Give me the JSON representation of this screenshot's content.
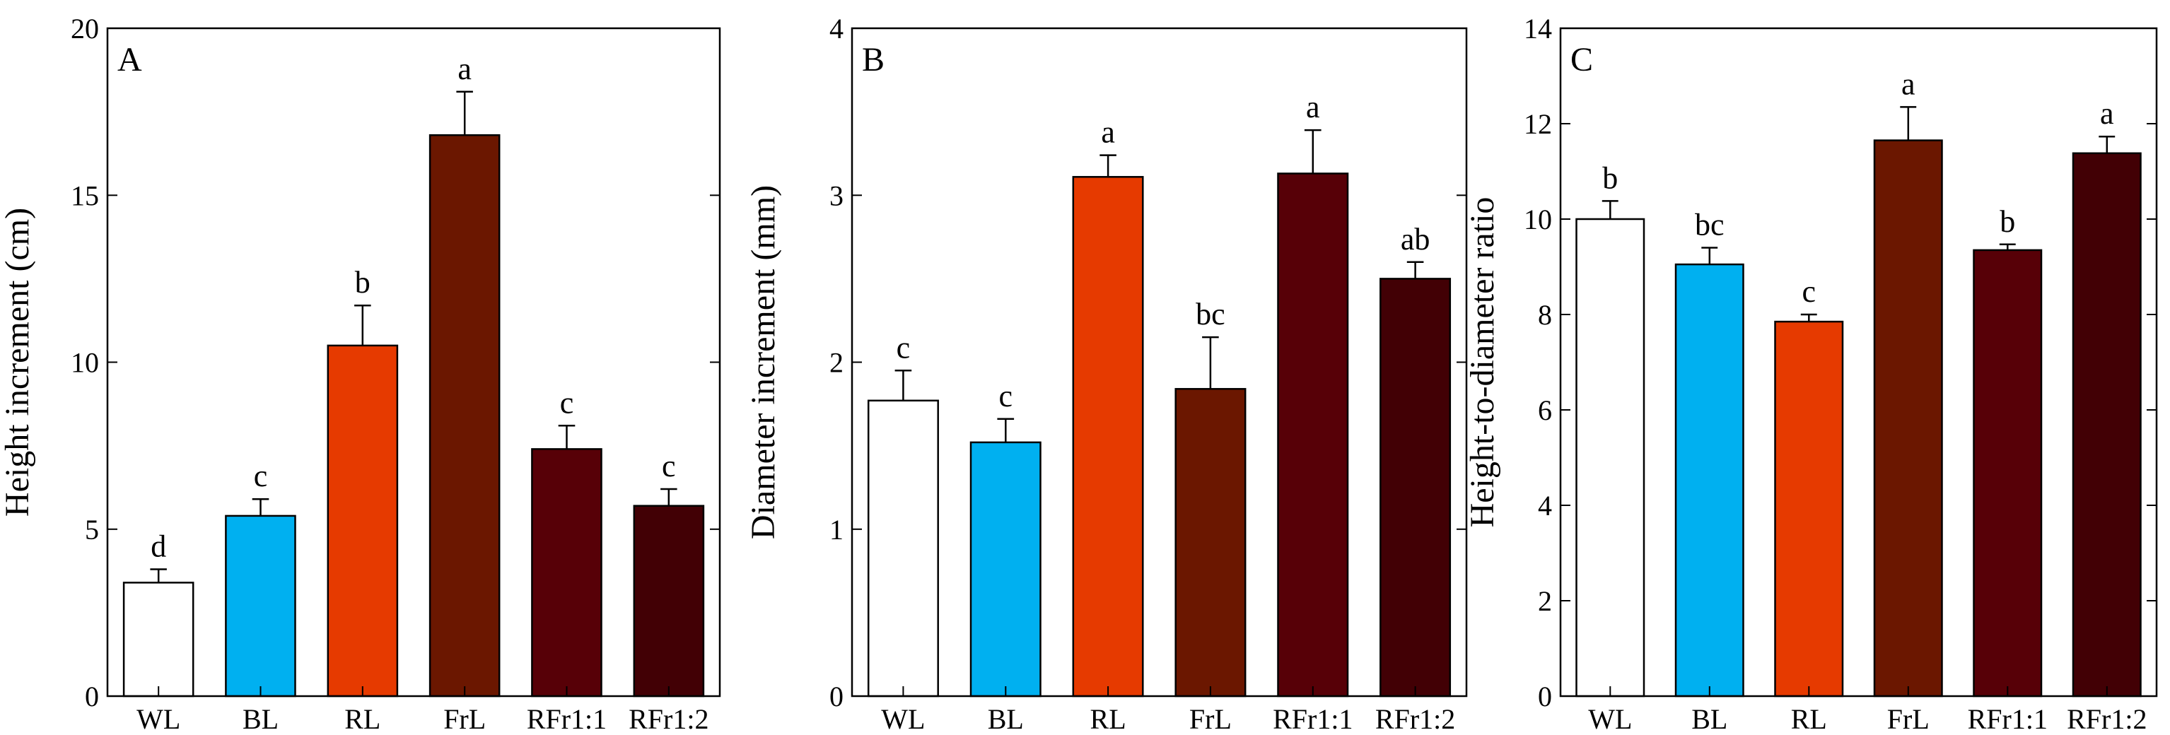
{
  "chart_data": [
    {
      "type": "bar",
      "panel": "A",
      "categories": [
        "WL",
        "BL",
        "RL",
        "FrL",
        "RFr1:1",
        "RFr1:2"
      ],
      "values": [
        3.4,
        5.4,
        10.5,
        16.8,
        7.4,
        5.7
      ],
      "errors": [
        0.4,
        0.5,
        1.2,
        1.3,
        0.7,
        0.5
      ],
      "significance": [
        "d",
        "c",
        "b",
        "a",
        "c",
        "c"
      ],
      "ylabel": "Height increment (cm)",
      "xlabel": "",
      "ylim": [
        0,
        20
      ],
      "yticks": [
        "0",
        "5",
        "10",
        "15",
        "20"
      ],
      "colors": [
        "#ffffff",
        "#00b0f0",
        "#e63a00",
        "#6b1700",
        "#570007",
        "#420005"
      ]
    },
    {
      "type": "bar",
      "panel": "B",
      "categories": [
        "WL",
        "BL",
        "RL",
        "FrL",
        "RFr1:1",
        "RFr1:2"
      ],
      "values": [
        1.77,
        1.52,
        3.11,
        1.84,
        3.13,
        2.5
      ],
      "errors": [
        0.18,
        0.14,
        0.13,
        0.31,
        0.26,
        0.1
      ],
      "significance": [
        "c",
        "c",
        "a",
        "bc",
        "a",
        "ab"
      ],
      "ylabel": "Diameter increment (mm)",
      "xlabel": "",
      "ylim": [
        0,
        4
      ],
      "yticks": [
        "0",
        "1",
        "2",
        "3",
        "4"
      ],
      "colors": [
        "#ffffff",
        "#00b0f0",
        "#e63a00",
        "#6b1700",
        "#570007",
        "#420005"
      ]
    },
    {
      "type": "bar",
      "panel": "C",
      "categories": [
        "WL",
        "BL",
        "RL",
        "FrL",
        "RFr1:1",
        "RFr1:2"
      ],
      "values": [
        10.0,
        9.05,
        7.85,
        11.65,
        9.35,
        11.38
      ],
      "errors": [
        0.38,
        0.35,
        0.15,
        0.7,
        0.12,
        0.35
      ],
      "significance": [
        "b",
        "bc",
        "c",
        "a",
        "b",
        "a"
      ],
      "ylabel": "Height-to-diameter ratio",
      "xlabel": "",
      "ylim": [
        0,
        14
      ],
      "yticks": [
        "0",
        "2",
        "4",
        "6",
        "8",
        "10",
        "12",
        "14"
      ],
      "colors": [
        "#ffffff",
        "#00b0f0",
        "#e63a00",
        "#6b1700",
        "#570007",
        "#420005"
      ]
    }
  ]
}
